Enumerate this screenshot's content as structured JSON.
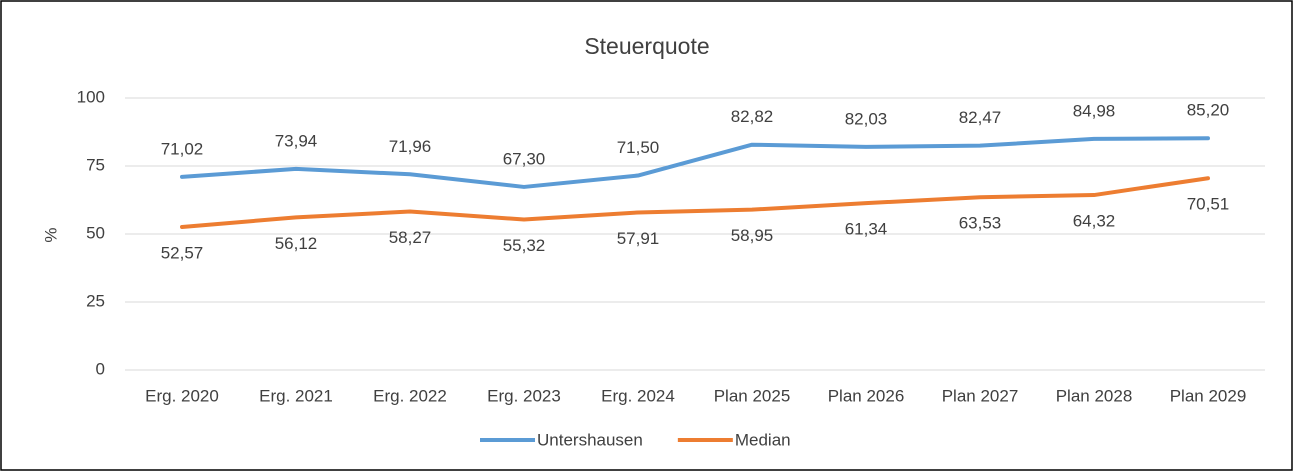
{
  "chart_data": {
    "type": "line",
    "title": "Steuerquote",
    "ylabel": "%",
    "categories": [
      "Erg. 2020",
      "Erg. 2021",
      "Erg. 2022",
      "Erg. 2023",
      "Erg. 2024",
      "Plan 2025",
      "Plan 2026",
      "Plan 2027",
      "Plan 2028",
      "Plan 2029"
    ],
    "series": [
      {
        "name": "Untershausen",
        "color": "#5b9bd5",
        "values": [
          71.02,
          73.94,
          71.96,
          67.3,
          71.5,
          82.82,
          82.03,
          82.47,
          84.98,
          85.2
        ],
        "value_labels": [
          "71,02",
          "73,94",
          "71,96",
          "67,30",
          "71,50",
          "82,82",
          "82,03",
          "82,47",
          "84,98",
          "85,20"
        ]
      },
      {
        "name": "Median",
        "color": "#ed7d31",
        "values": [
          52.57,
          56.12,
          58.27,
          55.32,
          57.91,
          58.95,
          61.34,
          63.53,
          64.32,
          70.51
        ],
        "value_labels": [
          "52,57",
          "56,12",
          "58,27",
          "55,32",
          "57,91",
          "58,95",
          "61,34",
          "63,53",
          "64,32",
          "70,51"
        ]
      }
    ],
    "ylim": [
      0,
      100
    ],
    "yticks": [
      0,
      25,
      50,
      75,
      100
    ],
    "grid": true,
    "legend": "bottom"
  }
}
